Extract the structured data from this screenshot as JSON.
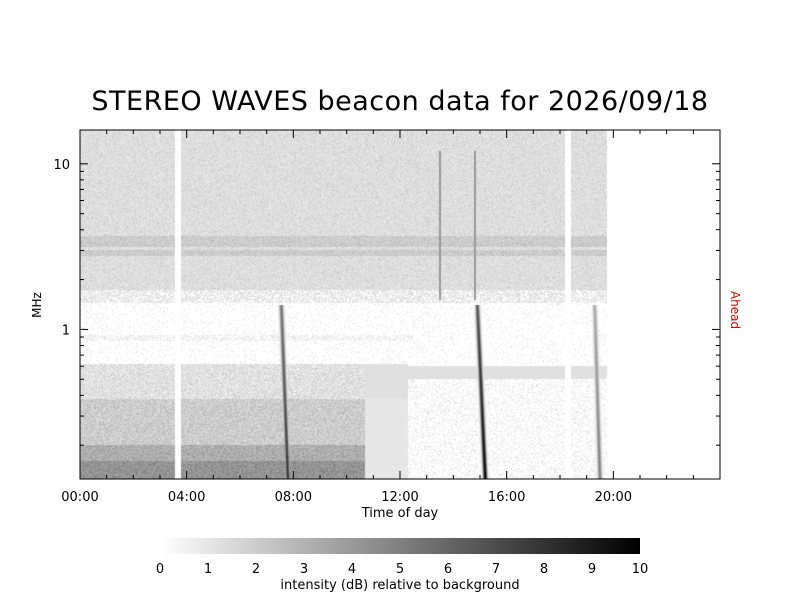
{
  "chart_data": {
    "type": "heatmap",
    "title": "STEREO WAVES beacon data for 2026/09/18",
    "xlabel": "Time of day",
    "ylabel": "MHz",
    "right_label": "Ahead",
    "right_label_color": "#dd0000",
    "x_range_hours": [
      0,
      24
    ],
    "x_ticks": [
      {
        "value": 0,
        "label": "00:00"
      },
      {
        "value": 4,
        "label": "04:00"
      },
      {
        "value": 8,
        "label": "08:00"
      },
      {
        "value": 12,
        "label": "12:00"
      },
      {
        "value": 16,
        "label": "16:00"
      },
      {
        "value": 20,
        "label": "20:00"
      }
    ],
    "y_scale": "log",
    "y_range_mhz": [
      0.125,
      16
    ],
    "y_ticks": [
      {
        "value": 1,
        "label": "1"
      },
      {
        "value": 10,
        "label": "10"
      }
    ],
    "data_gaps_hours": [
      [
        3.55,
        3.8
      ],
      [
        18.2,
        18.4
      ]
    ],
    "data_end_hour": 19.75,
    "radio_bursts": [
      {
        "start_hour": 7.3,
        "end_hour": 7.8,
        "max_intensity_db": 8
      },
      {
        "start_hour": 14.6,
        "end_hour": 15.2,
        "max_intensity_db": 10
      },
      {
        "start_hour": 19.1,
        "end_hour": 19.5,
        "max_intensity_db": 5
      }
    ],
    "colorbar": {
      "min": 0,
      "max": 10,
      "tick_labels": [
        "0",
        "1",
        "2",
        "3",
        "4",
        "5",
        "6",
        "7",
        "8",
        "9",
        "10"
      ],
      "label": "intensity (dB) relative to background",
      "colormap": "white-to-black"
    },
    "colors": {
      "low": "#ffffff",
      "high": "#000000",
      "axis": "#000000"
    }
  }
}
